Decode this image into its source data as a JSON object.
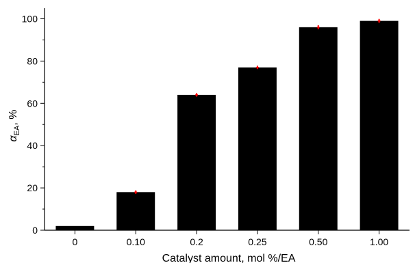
{
  "chart_data": {
    "type": "bar",
    "categories": [
      "0",
      "0.10",
      "0.2",
      "0.25",
      "0.50",
      "1.00"
    ],
    "values": [
      2,
      18,
      64,
      77,
      96,
      99
    ],
    "error_bars": [
      0.3,
      0.5,
      0.5,
      0.5,
      0.6,
      0.6
    ],
    "xlabel": "Catalyst amount, mol %/EA",
    "ylabel_symbol": "α",
    "ylabel_subscript": "EA",
    "ylabel_suffix": ", %",
    "ylim": [
      0,
      105
    ],
    "yticks": [
      "0",
      "20",
      "40",
      "60",
      "80",
      "100"
    ],
    "bar_color": "#000000",
    "error_color": "#ff0000",
    "grid": false,
    "legend": "none"
  }
}
